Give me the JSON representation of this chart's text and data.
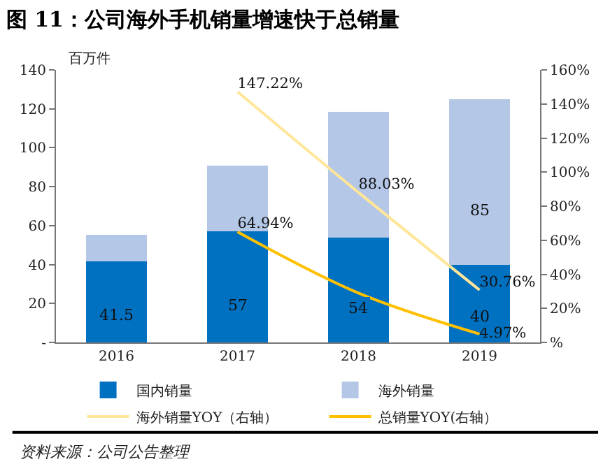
{
  "chart_data": {
    "type": "bar",
    "stacked": true,
    "title": "图 11：公司海外手机销量增速快于总销量",
    "ylabel": "百万件",
    "categories": [
      "2016",
      "2017",
      "2018",
      "2019"
    ],
    "series": [
      {
        "name": "国内销量",
        "color": "#0070c0",
        "values": [
          41.5,
          57,
          54,
          40
        ],
        "value_labels": [
          "41.5",
          "57",
          "54",
          "40"
        ]
      },
      {
        "name": "海外销量",
        "color": "#b4c7e7",
        "values": [
          13.8,
          34,
          64.5,
          85
        ],
        "value_labels": [
          null,
          null,
          null,
          "85"
        ]
      },
      {
        "name": "海外销量YOY（右轴）",
        "type": "line",
        "axis": "y2",
        "color": "#ffe699",
        "values": [
          null,
          147.22,
          88.03,
          30.76
        ],
        "value_labels": [
          null,
          "147.22%",
          "88.03%",
          "30.76%"
        ]
      },
      {
        "name": "总销量YOY(右轴）",
        "type": "line",
        "axis": "y2",
        "color": "#ffc000",
        "values": [
          null,
          64.94,
          29,
          4.97
        ],
        "value_labels": [
          null,
          "64.94%",
          null,
          "4.97%"
        ]
      }
    ],
    "ylim": [
      0,
      140
    ],
    "yticks": [
      {
        "value": 0,
        "label": "-"
      },
      20,
      40,
      60,
      80,
      100,
      120,
      140
    ],
    "y2lim": [
      0,
      160
    ],
    "y2ticks": [
      {
        "value": 0,
        "label": "%"
      },
      {
        "value": 20,
        "label": "20%"
      },
      {
        "value": 40,
        "label": "40%"
      },
      {
        "value": 60,
        "label": "60%"
      },
      {
        "value": 80,
        "label": "80%"
      },
      {
        "value": 100,
        "label": "100%"
      },
      {
        "value": 120,
        "label": "120%"
      },
      {
        "value": 140,
        "label": "140%"
      },
      {
        "value": 160,
        "label": "160%"
      }
    ],
    "grid": false,
    "legend": "bottom",
    "marker": "none",
    "line_style": "solid",
    "annotations": [
      "资料来源：公司公告整理"
    ]
  }
}
